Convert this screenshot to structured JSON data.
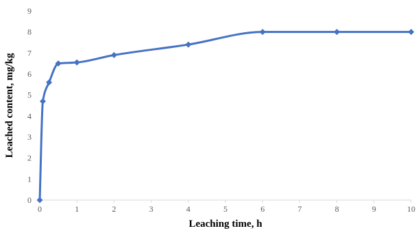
{
  "chart_data": {
    "type": "line",
    "title": "",
    "xlabel": "Leaching time, h",
    "ylabel": "Leached content, mg/kg",
    "xlim": [
      0,
      10
    ],
    "ylim": [
      0,
      9
    ],
    "x_ticks": [
      0,
      1,
      2,
      3,
      4,
      5,
      6,
      7,
      8,
      9,
      10
    ],
    "y_ticks": [
      0,
      1,
      2,
      3,
      4,
      5,
      6,
      7,
      8,
      9
    ],
    "grid": false,
    "legend": "none",
    "series": [
      {
        "color": "#4472C4",
        "marker": "diamond",
        "smooth": true,
        "x": [
          0,
          0.083,
          0.25,
          0.5,
          1,
          2,
          4,
          6,
          8,
          10
        ],
        "y": [
          0,
          4.7,
          5.6,
          6.5,
          6.55,
          6.9,
          7.4,
          8.0,
          8.0,
          8.0
        ]
      }
    ]
  }
}
